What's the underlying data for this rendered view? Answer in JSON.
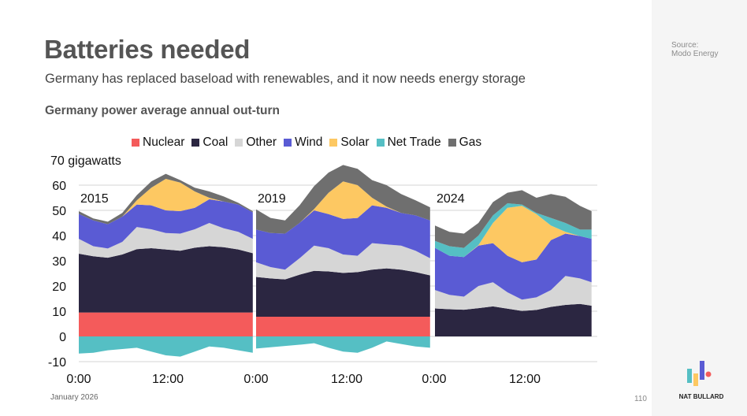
{
  "title": "Batteries needed",
  "subtitle": "Germany has replaced baseload with renewables, and it now needs energy storage",
  "source": {
    "label": "Source:",
    "value": "Modo Energy"
  },
  "footer": {
    "date": "January 2026",
    "page": "110",
    "brand": "NAT BULLARD"
  },
  "chart_data": {
    "type": "area",
    "title": "Germany power average annual out-turn",
    "ylabel": "gigawatts",
    "y_top_label": "70 gigawatts",
    "ylim": [
      -10,
      70
    ],
    "yticks": [
      60,
      50,
      40,
      30,
      20,
      10,
      0,
      -10
    ],
    "xticks": [
      "0:00",
      "12:00",
      "0:00",
      "12:00",
      "0:00",
      "12:00"
    ],
    "grid": true,
    "legend_position": "top",
    "series_names": [
      "Nuclear",
      "Coal",
      "Other",
      "Wind",
      "Solar",
      "Net Trade",
      "Gas"
    ],
    "colors": {
      "Nuclear": "#f45b5b",
      "Coal": "#2b2641",
      "Other": "#d6d6d6",
      "Wind": "#5a5bd4",
      "Solar": "#fdc862",
      "Net Trade": "#55bfc4",
      "Gas": "#6f6f6f"
    },
    "panels": [
      {
        "label": "2015",
        "hours": [
          0,
          2,
          4,
          6,
          8,
          10,
          12,
          14,
          16,
          18,
          20,
          22,
          24
        ],
        "series": {
          "Nuclear": [
            9.5,
            9.5,
            9.5,
            9.5,
            9.5,
            9.5,
            9.5,
            9.5,
            9.5,
            9.5,
            9.5,
            9.5,
            9.5
          ],
          "Coal": [
            23.3,
            22.3,
            21.7,
            23,
            25.1,
            25.5,
            25,
            24.5,
            25.7,
            26.3,
            25.9,
            25,
            23.5
          ],
          "Other": [
            5.9,
            4,
            3.7,
            5,
            8.8,
            7.5,
            6.5,
            6.8,
            7.3,
            9.2,
            7.5,
            7,
            5.7
          ],
          "Wind": [
            9.9,
            10.2,
            9.6,
            10,
            8.9,
            9.5,
            9,
            8.9,
            8.5,
            9.4,
            10.6,
            10.8,
            10.5
          ],
          "Solar": [
            0,
            0,
            0,
            0,
            1.7,
            7,
            12.5,
            11.3,
            6.5,
            0.6,
            0,
            0,
            0
          ],
          "Net Trade": [
            -6.8,
            -6.5,
            -5.5,
            -5,
            -4.5,
            -6,
            -7.5,
            -8,
            -6,
            -4,
            -4.5,
            -5.5,
            -6.5
          ],
          "Gas": [
            1.1,
            0.8,
            1,
            1.5,
            2,
            2.5,
            2,
            1,
            1.5,
            2.5,
            2,
            0.7,
            0.5
          ]
        }
      },
      {
        "label": "2019",
        "hours": [
          0,
          2,
          4,
          6,
          8,
          10,
          12,
          14,
          16,
          18,
          20,
          22,
          24
        ],
        "series": {
          "Nuclear": [
            7.8,
            7.8,
            7.8,
            7.8,
            7.8,
            7.8,
            7.8,
            7.8,
            7.8,
            7.8,
            7.8,
            7.8,
            7.8
          ],
          "Coal": [
            15.8,
            15.2,
            14.8,
            16.7,
            18.2,
            18,
            17.4,
            17.7,
            18.7,
            19.2,
            18.7,
            17.7,
            16.4
          ],
          "Other": [
            5.8,
            4.5,
            3.9,
            6.5,
            10,
            9.2,
            7.3,
            6.5,
            10.5,
            9.5,
            9.5,
            8.5,
            6.8
          ],
          "Wind": [
            13,
            13.5,
            14.3,
            14,
            14,
            13.5,
            14.1,
            15,
            15,
            14.5,
            13,
            14,
            15
          ],
          "Solar": [
            0,
            0,
            0,
            0,
            0.5,
            8.5,
            14.9,
            13,
            3,
            0.5,
            0,
            0,
            0
          ],
          "Net Trade": [
            -4.8,
            -4.3,
            -3.8,
            -3.3,
            -2.7,
            -4.5,
            -6,
            -6.5,
            -4.5,
            -2,
            -3,
            -4,
            -4.5
          ],
          "Gas": [
            8,
            6,
            5.2,
            7,
            9.1,
            8,
            6.5,
            6.5,
            7,
            8.5,
            7.5,
            6,
            5.2
          ]
        }
      },
      {
        "label": "2024",
        "hours": [
          0,
          2,
          4,
          6,
          8,
          10,
          12,
          14,
          16,
          18,
          20,
          21.6
        ],
        "series": {
          "Nuclear": [
            0,
            0,
            0,
            0,
            0,
            0,
            0,
            0,
            0,
            0,
            0,
            0
          ],
          "Coal": [
            11.1,
            10.8,
            10.6,
            11.2,
            11.9,
            11,
            10.1,
            10.5,
            11.7,
            12.5,
            12.9,
            12.2
          ],
          "Other": [
            7.3,
            5.7,
            5.2,
            8.8,
            9.6,
            6.5,
            4.5,
            5,
            6.7,
            11.5,
            10.1,
            9.3
          ],
          "Wind": [
            16.7,
            15.5,
            15.7,
            16,
            15.5,
            14.5,
            14.8,
            15,
            19.8,
            16.8,
            16.8,
            17.2
          ],
          "Solar": [
            0,
            0,
            0,
            0.2,
            8,
            19,
            22.4,
            18,
            5.8,
            0.7,
            0,
            0
          ],
          "Net Trade": [
            2.8,
            3.8,
            3.6,
            3.8,
            3,
            1.8,
            0.5,
            0.5,
            3,
            3.5,
            2.6,
            3.7
          ],
          "Gas": [
            6.1,
            5.7,
            5.7,
            5,
            5.3,
            4.2,
            5.7,
            6,
            9.5,
            10.4,
            9.4,
            7.3
          ]
        }
      }
    ]
  }
}
